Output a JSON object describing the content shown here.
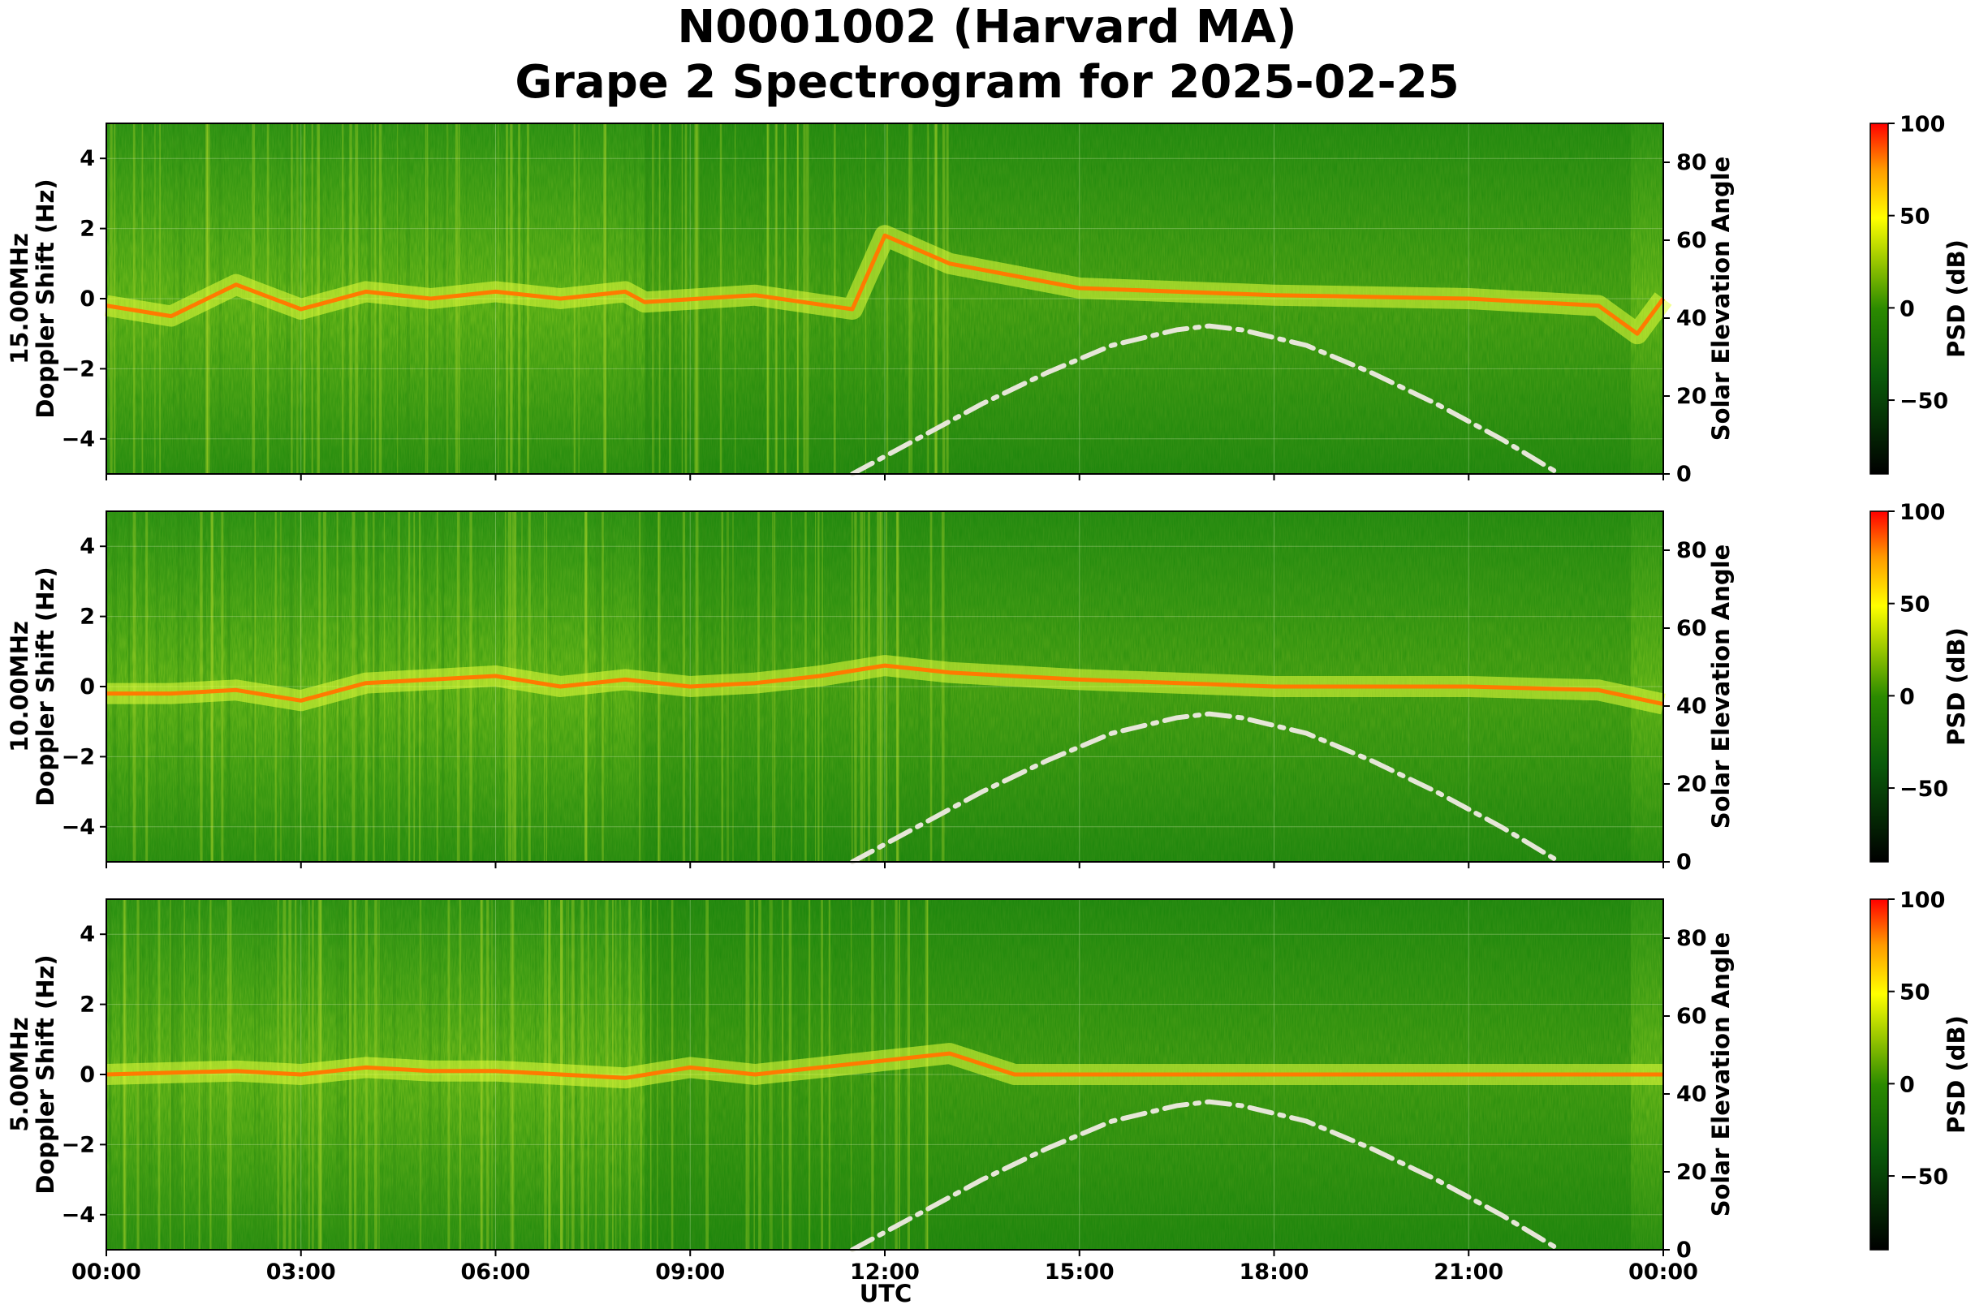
{
  "title_line1": "N0001002 (Harvard MA)",
  "title_line2": "Grape 2 Spectrogram for 2025-02-25",
  "xlabel": "UTC",
  "x_tick_labels": [
    "00:00",
    "03:00",
    "06:00",
    "09:00",
    "12:00",
    "15:00",
    "18:00",
    "21:00",
    "00:00"
  ],
  "y_tick_labels": [
    "4",
    "2",
    "0",
    "−2",
    "−4"
  ],
  "y2_tick_labels": [
    "80",
    "60",
    "40",
    "20",
    "0"
  ],
  "y2_label": "Solar Elevation Angle",
  "colorbar": {
    "label": "PSD (dB)",
    "tick_labels": [
      "100",
      "50",
      "0",
      "−50"
    ],
    "ticks": [
      100,
      50,
      0,
      -50
    ],
    "range": [
      -90,
      100
    ],
    "colors": [
      "#000000",
      "#006400",
      "#2e8b00",
      "#ffff00",
      "#ff8c00",
      "#ff0000"
    ]
  },
  "panels": [
    {
      "ylabel_line1": "15.00MHz",
      "ylabel_line2": "Doppler Shift (Hz)"
    },
    {
      "ylabel_line1": "10.00MHz",
      "ylabel_line2": "Doppler Shift (Hz)"
    },
    {
      "ylabel_line1": "5.00MHz",
      "ylabel_line2": "Doppler Shift (Hz)"
    }
  ],
  "chart_data": {
    "type": "heatmap",
    "title": "N0001002 (Harvard MA)\nGrape 2 Spectrogram for 2025-02-25",
    "xlabel": "UTC",
    "x_range_hours": [
      0,
      24
    ],
    "ylim": [
      -5,
      5
    ],
    "y_ticks": [
      4,
      2,
      0,
      -2,
      -4
    ],
    "y2_ticks": [
      80,
      60,
      40,
      20,
      0
    ],
    "y2lim": [
      0,
      90
    ],
    "grid": true,
    "solar_elevation_curve": {
      "x_hours": [
        11.5,
        12.5,
        13.5,
        14.5,
        15.5,
        16.5,
        17.0,
        17.5,
        18.5,
        19.5,
        20.5,
        21.5,
        22.4
      ],
      "y_deg": [
        0,
        9,
        18,
        26,
        33,
        37,
        38,
        37,
        33,
        26,
        18,
        9,
        0
      ]
    },
    "panels": [
      {
        "frequency": "15.00MHz",
        "doppler_trace": {
          "x_hours": [
            0,
            1,
            2,
            3,
            4,
            5,
            6,
            7,
            8,
            8.3,
            10,
            11.5,
            12,
            13,
            15,
            18,
            21,
            23,
            23.6,
            24
          ],
          "y_hz": [
            -0.2,
            -0.5,
            0.4,
            -0.3,
            0.2,
            0.0,
            0.2,
            0.0,
            0.2,
            -0.1,
            0.1,
            -0.3,
            1.8,
            1.0,
            0.3,
            0.1,
            0.0,
            -0.2,
            -1.0,
            0.0
          ]
        }
      },
      {
        "frequency": "10.00MHz",
        "doppler_trace": {
          "x_hours": [
            0,
            1,
            2,
            3,
            4,
            5,
            6,
            7,
            8,
            9,
            10,
            11,
            12,
            13,
            15,
            18,
            21,
            23,
            24
          ],
          "y_hz": [
            -0.2,
            -0.2,
            -0.1,
            -0.4,
            0.1,
            0.2,
            0.3,
            0.0,
            0.2,
            0.0,
            0.1,
            0.3,
            0.6,
            0.4,
            0.2,
            0.0,
            0.0,
            -0.1,
            -0.5
          ]
        }
      },
      {
        "frequency": "5.00MHz",
        "doppler_trace": {
          "x_hours": [
            0,
            2,
            3,
            4,
            5,
            6,
            7,
            8,
            9,
            10,
            11,
            12,
            13,
            14,
            21.5,
            24
          ],
          "y_hz": [
            0.0,
            0.1,
            0.0,
            0.2,
            0.1,
            0.1,
            0.0,
            -0.1,
            0.2,
            0.0,
            0.2,
            0.4,
            0.6,
            0.0,
            0.0,
            0.0
          ]
        }
      }
    ]
  }
}
